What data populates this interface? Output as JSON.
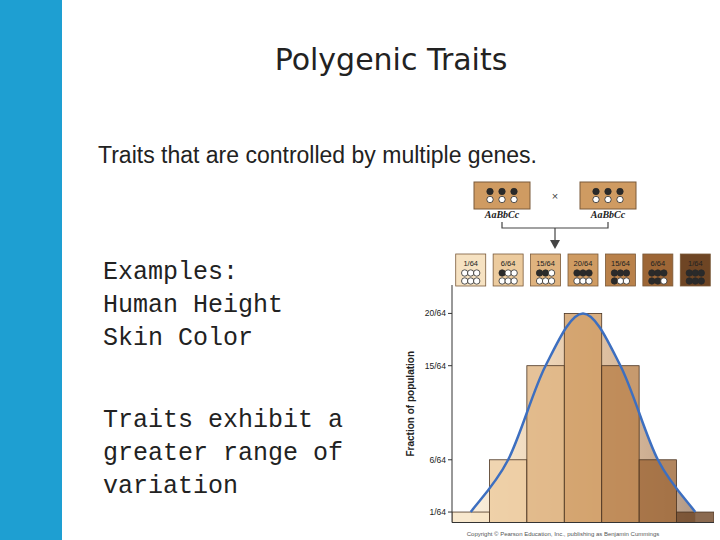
{
  "slide": {
    "title": "Polygenic Traits",
    "subtitle": "Traits that are controlled by multiple genes.",
    "examples": [
      "Examples:",
      "Human Height",
      "Skin Color"
    ],
    "note": [
      "Traits exhibit a",
      "greater range of",
      "variation"
    ]
  },
  "figure": {
    "parents": [
      "AaBbCc",
      "AaBbCc"
    ],
    "cross_symbol": "×",
    "credit": "Copyright © Pearson Education, Inc., publishing as Benjamin Cummings"
  },
  "chart_data": {
    "type": "bar",
    "y_label": "Fraction of population",
    "categories": [
      null,
      null,
      null,
      null,
      null,
      null,
      null
    ],
    "values": [
      0.015625,
      0.09375,
      0.234375,
      0.3125,
      0.234375,
      0.09375,
      0.015625
    ],
    "value_labels": [
      "1/64",
      "6/64",
      "15/64",
      "20/64",
      "15/64",
      "6/64",
      "1/64"
    ],
    "data_labels": true,
    "colors": [
      "#f6e2c2",
      "#eccb9e",
      "#dfb37f",
      "#cf9b62",
      "#b9814a",
      "#9d6636",
      "#6e4524"
    ],
    "ylim": [
      0,
      0.355
    ],
    "yticks": [
      {
        "value": 0.015625,
        "label": "1/64"
      },
      {
        "value": 0.09375,
        "label": "6/64"
      },
      {
        "value": 0.234375,
        "label": "15/64"
      },
      {
        "value": 0.3125,
        "label": "20/64"
      }
    ],
    "tick_labels": "y",
    "grid": false
  }
}
